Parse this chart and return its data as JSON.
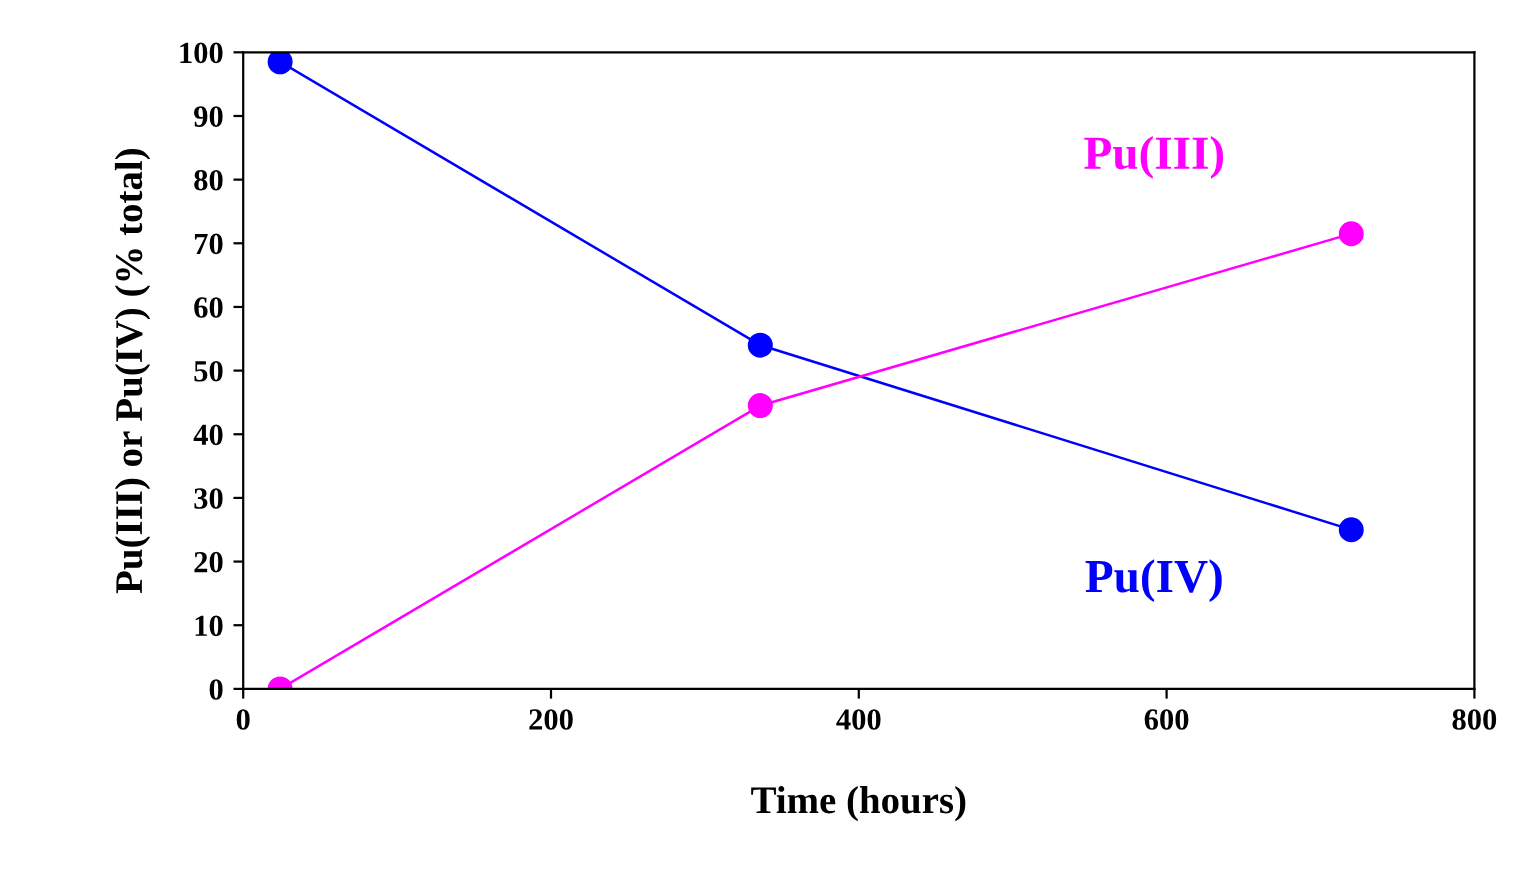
{
  "chart_data": {
    "type": "line",
    "xlabel": "Time (hours)",
    "ylabel": "Pu(III) or Pu(IV) (% total)",
    "xlim": [
      0,
      800
    ],
    "xticks": [
      0,
      200,
      400,
      600,
      800
    ],
    "ylim": [
      0,
      100
    ],
    "yticks": [
      0,
      10,
      20,
      30,
      40,
      50,
      60,
      70,
      80,
      90,
      100
    ],
    "grid": false,
    "legend": false,
    "marker": "circle",
    "line_style": "solid",
    "series": [
      {
        "name": "Pu(IV)",
        "color": "#0000ff",
        "x": [
          24,
          336,
          720
        ],
        "values": [
          98.5,
          54,
          25
        ]
      },
      {
        "name": "Pu(III)",
        "color": "#ff00ff",
        "x": [
          24,
          336,
          720
        ],
        "values": [
          0,
          44.5,
          71.5
        ]
      }
    ]
  }
}
